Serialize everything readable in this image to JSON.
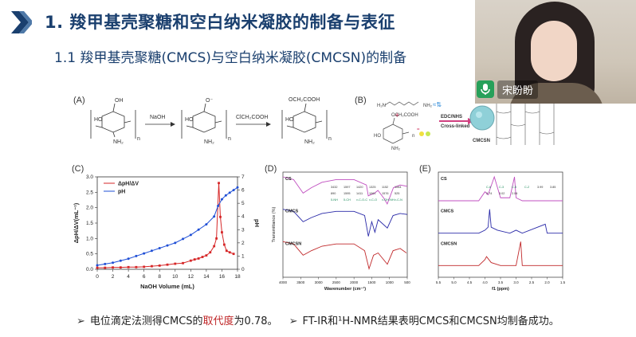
{
  "slide": {
    "title": "1. 羧甲基壳聚糖和空白纳米凝胶的制备与表征",
    "subtitle": "1.1 羧甲基壳聚糖(CMCS)与空白纳米凝胶(CMCSN)的制备"
  },
  "panels": {
    "a": "(A)",
    "b": "(B)",
    "c": "(C)",
    "d": "(D)",
    "e": "(E)"
  },
  "scheme_a": {
    "reagent1": "NaOH",
    "reagent2": "ClCH₂COOH",
    "sub_oh": "OH",
    "sub_o": "O⁻",
    "sub_och": "OCH₂COOH",
    "ho": "HO",
    "nh2": "NH₂",
    "n": "n"
  },
  "scheme_b": {
    "reagent": "EDC/NHS",
    "process": "Cross-linked",
    "product": "CMCSN",
    "plus": "+",
    "sub_och": "OCH₂COOH",
    "nh2": "NH₂",
    "ho": "HO"
  },
  "chart_data": [
    {
      "type": "line",
      "panel": "C",
      "xlabel": "NaOH Volume (mL)",
      "ylabel": "ΔpH/ΔV(mL⁻¹)",
      "y2label": "pH",
      "xlim": [
        0,
        18
      ],
      "ylim": [
        0,
        3.0
      ],
      "y2lim": [
        0,
        7
      ],
      "xticks": [
        "0",
        "2",
        "4",
        "6",
        "8",
        "10",
        "12",
        "14",
        "16",
        "18"
      ],
      "yticks": [
        "0.0",
        "0.5",
        "1.0",
        "1.5",
        "2.0",
        "2.5",
        "3.0"
      ],
      "y2ticks": [
        "0",
        "1",
        "2",
        "3",
        "4",
        "5",
        "6",
        "7"
      ],
      "legend_position": "top-left",
      "series": [
        {
          "name": "ΔpH/ΔV",
          "axis": "left",
          "color": "#d62728",
          "x": [
            0,
            1,
            2,
            3,
            4,
            5,
            6,
            7,
            8,
            9,
            10,
            11,
            12,
            12.5,
            13,
            13.5,
            14,
            14.5,
            15,
            15.3,
            15.6,
            15.8,
            16,
            16.3,
            16.6,
            17,
            17.5
          ],
          "values": [
            0.05,
            0.05,
            0.06,
            0.06,
            0.07,
            0.07,
            0.08,
            0.1,
            0.12,
            0.15,
            0.18,
            0.2,
            0.28,
            0.32,
            0.35,
            0.4,
            0.45,
            0.55,
            0.75,
            1.0,
            2.8,
            1.7,
            1.2,
            0.8,
            0.6,
            0.55,
            0.5
          ]
        },
        {
          "name": "pH",
          "axis": "right",
          "color": "#1f4fd6",
          "x": [
            0,
            1,
            2,
            3,
            4,
            5,
            6,
            7,
            8,
            9,
            10,
            11,
            12,
            13,
            14,
            15,
            15.5,
            16,
            16.5,
            17,
            17.5,
            18
          ],
          "values": [
            0.3,
            0.4,
            0.5,
            0.65,
            0.8,
            1.0,
            1.2,
            1.4,
            1.6,
            1.8,
            2.0,
            2.3,
            2.6,
            3.0,
            3.4,
            4.0,
            4.8,
            5.3,
            5.6,
            5.8,
            6.0,
            6.2
          ]
        }
      ]
    },
    {
      "type": "line",
      "panel": "D",
      "xlabel": "Wavenumber (cm⁻¹)",
      "ylabel": "Transmittance (%)",
      "xlim": [
        4000,
        500
      ],
      "xticks": [
        "4000",
        "3500",
        "3000",
        "2500",
        "2000",
        "1500",
        "1000",
        "500"
      ],
      "annotations": [
        "3432",
        "1597",
        "1420",
        "1325",
        "1152",
        "1064",
        "890",
        "1595",
        "1411",
        "1061",
        "1576",
        "525",
        "δ-NH",
        "δ-CH",
        "ν-C-O-C",
        "ν-C-O",
        "ν-OH-NH",
        "ν-C-N"
      ],
      "series": [
        {
          "name": "CS",
          "color": "#c04fc0",
          "x": [
            4000,
            3700,
            3432,
            3200,
            2900,
            2500,
            2000,
            1650,
            1597,
            1420,
            1325,
            1152,
            1064,
            890,
            700,
            500
          ],
          "values": [
            92,
            90,
            80,
            84,
            88,
            90,
            90,
            86,
            78,
            80,
            82,
            76,
            72,
            84,
            86,
            85
          ]
        },
        {
          "name": "CMCS",
          "color": "#2a2aa8",
          "x": [
            4000,
            3700,
            3432,
            3200,
            2900,
            2500,
            2000,
            1700,
            1595,
            1500,
            1411,
            1320,
            1061,
            900,
            700,
            500
          ],
          "values": [
            62,
            60,
            50,
            54,
            58,
            60,
            60,
            56,
            36,
            50,
            40,
            52,
            44,
            56,
            58,
            57
          ]
        },
        {
          "name": "CMCSN",
          "color": "#c0282a",
          "x": [
            4000,
            3700,
            3432,
            3200,
            2900,
            2500,
            2000,
            1700,
            1576,
            1450,
            1320,
            1061,
            900,
            700,
            525
          ],
          "values": [
            30,
            28,
            18,
            22,
            26,
            28,
            28,
            22,
            6,
            18,
            20,
            10,
            22,
            24,
            20
          ]
        }
      ]
    },
    {
      "type": "line",
      "panel": "E",
      "xlabel": "f1 (ppm)",
      "xlim": [
        5.5,
        1.5
      ],
      "xticks": [
        "5.5",
        "5.0",
        "4.5",
        "4.0",
        "3.5",
        "3.0",
        "2.5",
        "2.0",
        "1.5"
      ],
      "annotations": [
        "C-6",
        "C-3",
        "C-5",
        "C-2",
        "3.99",
        "3.85",
        "3.74",
        "3.02",
        "2.06"
      ],
      "series": [
        {
          "name": "CS",
          "color": "#c04fc0",
          "x": [
            5.5,
            4.2,
            4.0,
            3.9,
            3.8,
            3.7,
            3.5,
            3.2,
            3.05,
            3.0,
            2.8,
            2.2,
            1.5
          ],
          "values": [
            0,
            0,
            3,
            2,
            5,
            8,
            1,
            1,
            8,
            1,
            0,
            0,
            0
          ]
        },
        {
          "name": "CMCS",
          "color": "#2a2aa8",
          "x": [
            5.5,
            4.2,
            4.0,
            3.9,
            3.85,
            3.8,
            3.6,
            3.2,
            3.0,
            2.8,
            2.06,
            2.0,
            1.5
          ],
          "values": [
            0,
            0,
            1,
            2,
            8,
            2,
            1,
            0,
            1,
            0,
            3,
            0,
            0
          ]
        },
        {
          "name": "CMCSN",
          "color": "#c0282a",
          "x": [
            5.5,
            4.2,
            4.0,
            3.95,
            3.8,
            3.5,
            3.2,
            3.0,
            2.85,
            2.8,
            2.5,
            1.5
          ],
          "values": [
            0,
            0,
            2,
            3,
            1,
            0,
            0,
            0,
            8,
            0,
            0,
            0
          ]
        }
      ]
    }
  ],
  "bullets": {
    "b1_prefix": "电位滴定法测得CMCS的",
    "b1_highlight": "取代度",
    "b1_suffix": "为0.78。",
    "b2": "FT-IR和¹H-NMR结果表明CMCS和CMCSN均制备成功。",
    "marker": "➢"
  },
  "video": {
    "speaker_name": "宋盼盼",
    "accent": "#27a05a"
  }
}
